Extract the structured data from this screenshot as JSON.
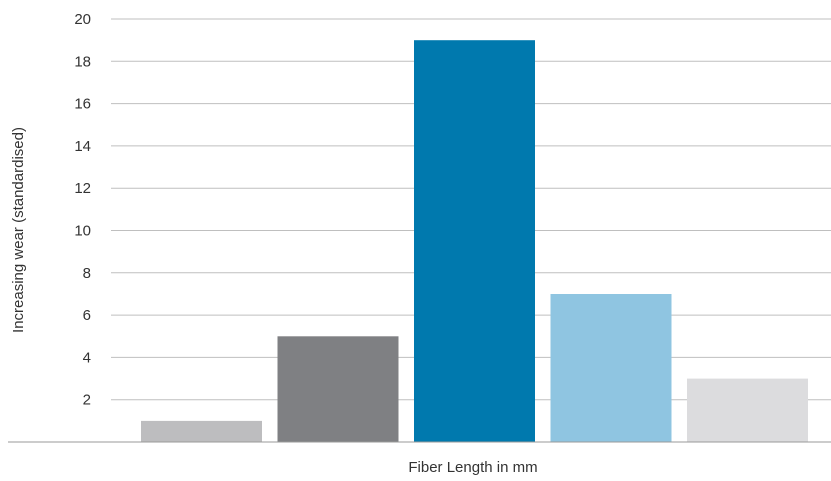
{
  "chart_data": {
    "type": "bar",
    "title": "",
    "xlabel": "Fiber Length in mm",
    "ylabel": "Increasing wear (standardised)",
    "categories": [
      "",
      "",
      "",
      "",
      ""
    ],
    "values": [
      1,
      5,
      19,
      7,
      3
    ],
    "bar_colors": [
      "#bdbdbf",
      "#7f8083",
      "#0079ae",
      "#8fc5e1",
      "#dcdcde"
    ],
    "ylim": [
      0,
      20
    ],
    "yticks": [
      2,
      4,
      6,
      8,
      10,
      12,
      14,
      16,
      18,
      20
    ],
    "grid": true,
    "legend": "none"
  }
}
